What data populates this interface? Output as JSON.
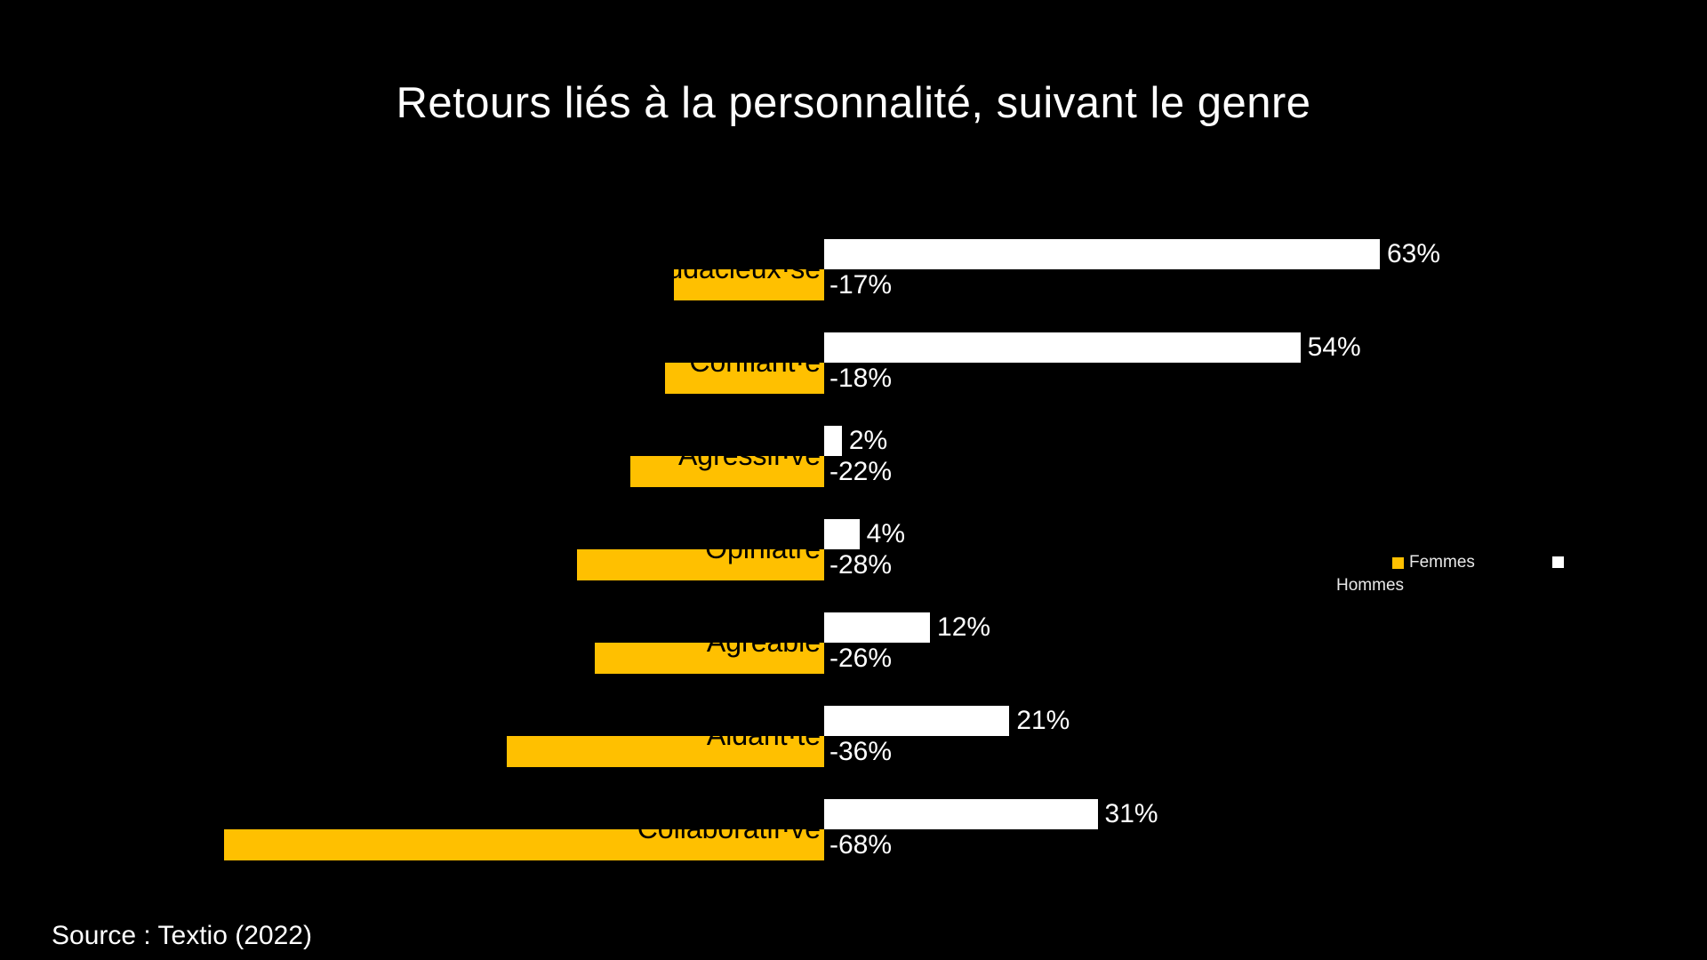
{
  "slide": {
    "background": "#000000",
    "title": "Retours liés à la personnalité, suivant le genre",
    "source": "Source : Textio (2022)"
  },
  "legend": {
    "femmes_label": "Femmes",
    "hommes_label": "Hommes",
    "femmes_color": "#FFC000",
    "hommes_color": "#FFFFFF"
  },
  "chart_data": {
    "type": "bar",
    "orientation": "horizontal-diverging",
    "title": "Retours liés à la personnalité, suivant le genre",
    "value_suffix": "%",
    "xlim": [
      -68,
      63
    ],
    "grid": false,
    "legend_position": "right",
    "colors": {
      "hommes": "#FFFFFF",
      "femmes": "#FFC000"
    },
    "series_names": [
      "Hommes",
      "Femmes"
    ],
    "rows": [
      {
        "category": "Audacieux·se",
        "hommes": 63,
        "femmes": -17,
        "hommes_label": "63%",
        "femmes_label": "-17%"
      },
      {
        "category": "Confiant·e",
        "hommes": 54,
        "femmes": -18,
        "hommes_label": "54%",
        "femmes_label": "-18%"
      },
      {
        "category": "Agressif·ve",
        "hommes": 2,
        "femmes": -22,
        "hommes_label": "2%",
        "femmes_label": "-22%"
      },
      {
        "category": "Opiniâtre",
        "hommes": 4,
        "femmes": -28,
        "hommes_label": "4%",
        "femmes_label": "-28%"
      },
      {
        "category": "Agréable",
        "hommes": 12,
        "femmes": -26,
        "hommes_label": "12%",
        "femmes_label": "-26%"
      },
      {
        "category": "Aidant·te",
        "hommes": 21,
        "femmes": -36,
        "hommes_label": "21%",
        "femmes_label": "-36%"
      },
      {
        "category": "Collaboratif·ve",
        "hommes": 31,
        "femmes": -68,
        "hommes_label": "31%",
        "femmes_label": "-68%"
      }
    ]
  }
}
